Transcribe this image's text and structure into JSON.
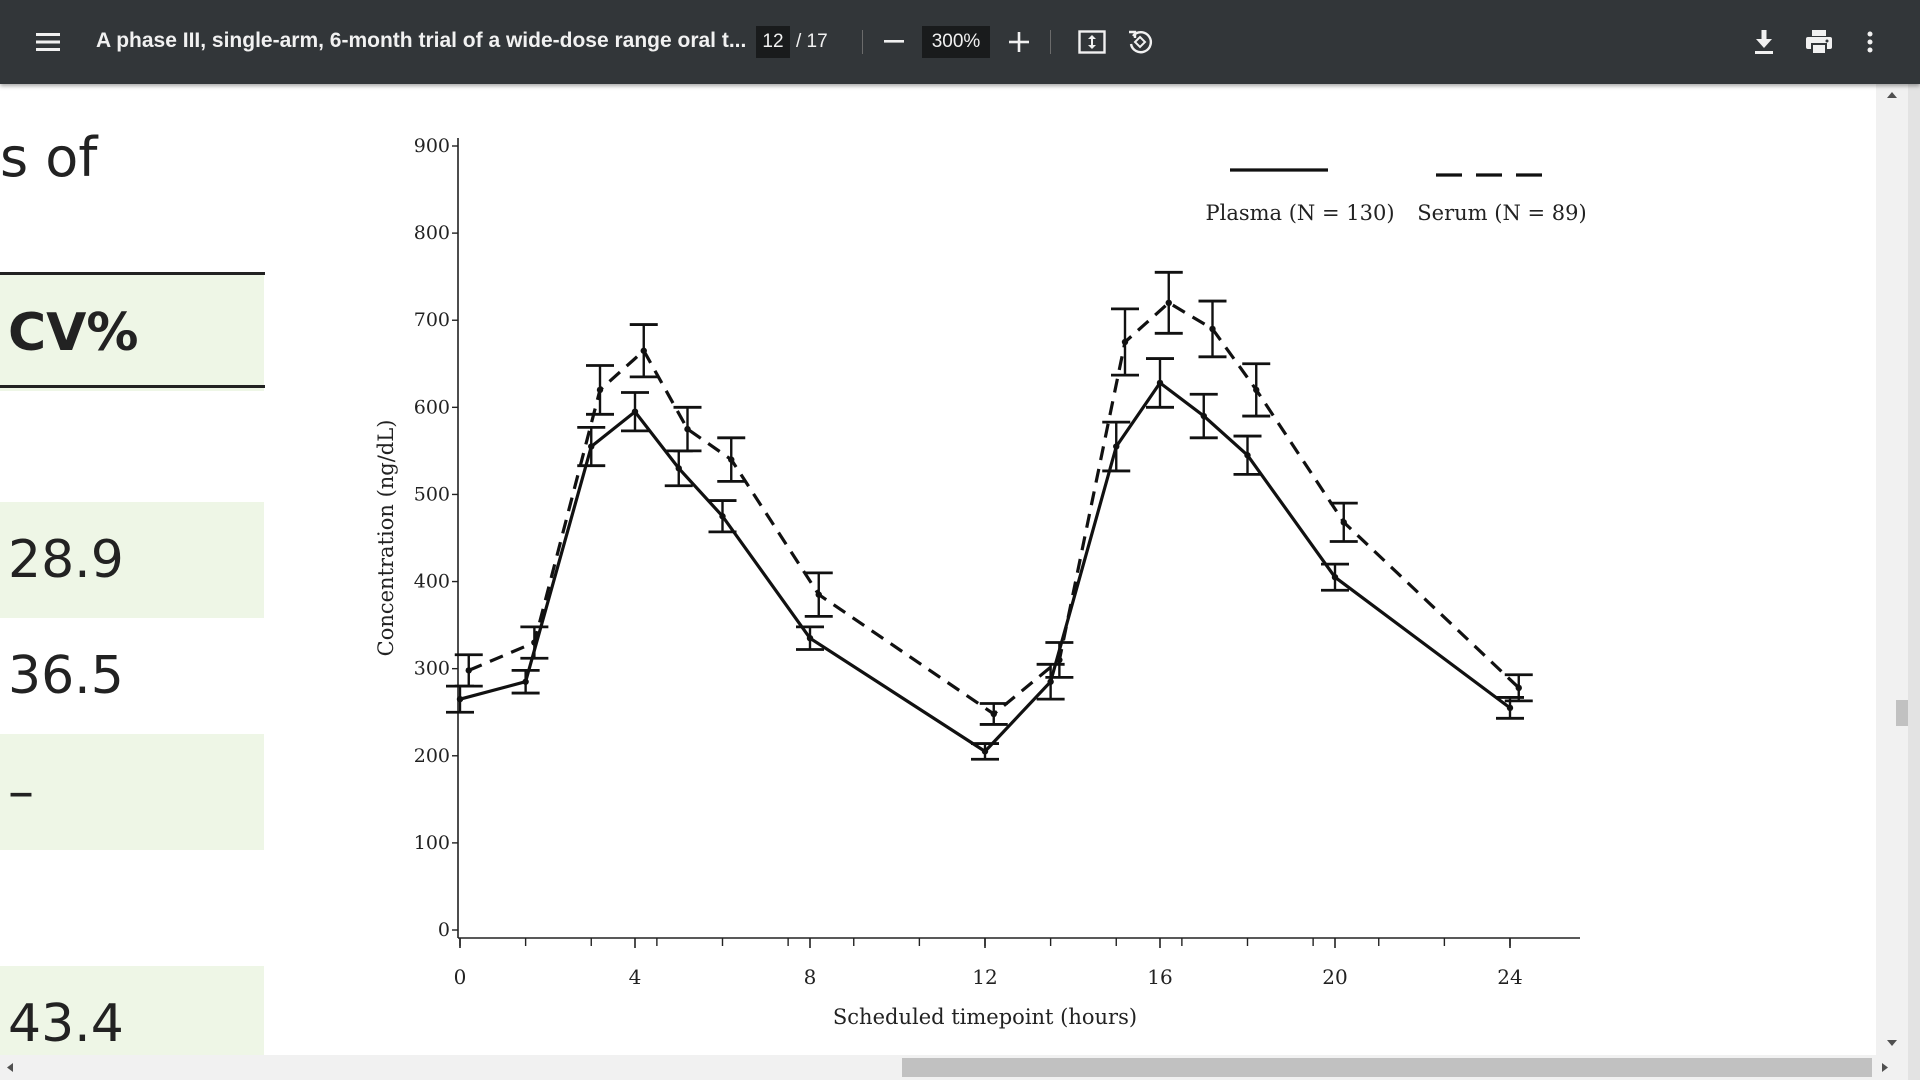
{
  "toolbar": {
    "menu_icon": "hamburger-menu-icon",
    "title": "A phase III, single-arm, 6-month trial of a wide-dose range oral t...",
    "current_page": "12",
    "page_total": "/ 17",
    "zoom": "300%",
    "zoom_out_icon": "minus-icon",
    "zoom_in_icon": "plus-icon",
    "fit_icon": "fit-to-page-icon",
    "rotate_icon": "rotate-icon",
    "download_icon": "download-icon",
    "print_icon": "print-icon",
    "more_icon": "more-vert-icon",
    "bg_color": "#323639"
  },
  "document": {
    "heading_fragment": "s of",
    "table": {
      "header": "CV%",
      "values": [
        "28.9",
        "36.5",
        "–",
        "43.4"
      ],
      "highlight_color": "#eef6e6"
    }
  },
  "chart_data": {
    "type": "line",
    "xlabel": "Scheduled timepoint (hours)",
    "ylabel": "Concentration (ng/dL)",
    "xlim": [
      0,
      24.5
    ],
    "ylim": [
      0,
      900
    ],
    "xticks": [
      0,
      4,
      8,
      12,
      16,
      20,
      24
    ],
    "yticks": [
      0,
      100,
      200,
      300,
      400,
      500,
      600,
      700,
      800,
      900
    ],
    "grid": false,
    "legend_position": "top-right",
    "series": [
      {
        "name": "Plasma (N = 130)",
        "style": "solid",
        "x": [
          0,
          1.5,
          3,
          4,
          5,
          6,
          8,
          12,
          13.5,
          15,
          16,
          17,
          18,
          20,
          24
        ],
        "y": [
          265,
          285,
          555,
          595,
          530,
          475,
          335,
          205,
          285,
          555,
          628,
          590,
          545,
          405,
          255
        ],
        "err": [
          15,
          13,
          22,
          22,
          20,
          18,
          13,
          9,
          20,
          28,
          28,
          25,
          22,
          15,
          12
        ]
      },
      {
        "name": "Serum (N = 89)",
        "style": "dashed",
        "x": [
          0.2,
          1.7,
          3.2,
          4.2,
          5.2,
          6.2,
          8.2,
          12.2,
          13.7,
          15.2,
          16.2,
          17.2,
          18.2,
          20.2,
          24.2
        ],
        "y": [
          298,
          330,
          620,
          665,
          575,
          540,
          385,
          248,
          310,
          675,
          720,
          690,
          620,
          468,
          278
        ],
        "err": [
          18,
          18,
          28,
          30,
          25,
          25,
          25,
          12,
          20,
          38,
          35,
          32,
          30,
          22,
          15
        ]
      }
    ]
  }
}
